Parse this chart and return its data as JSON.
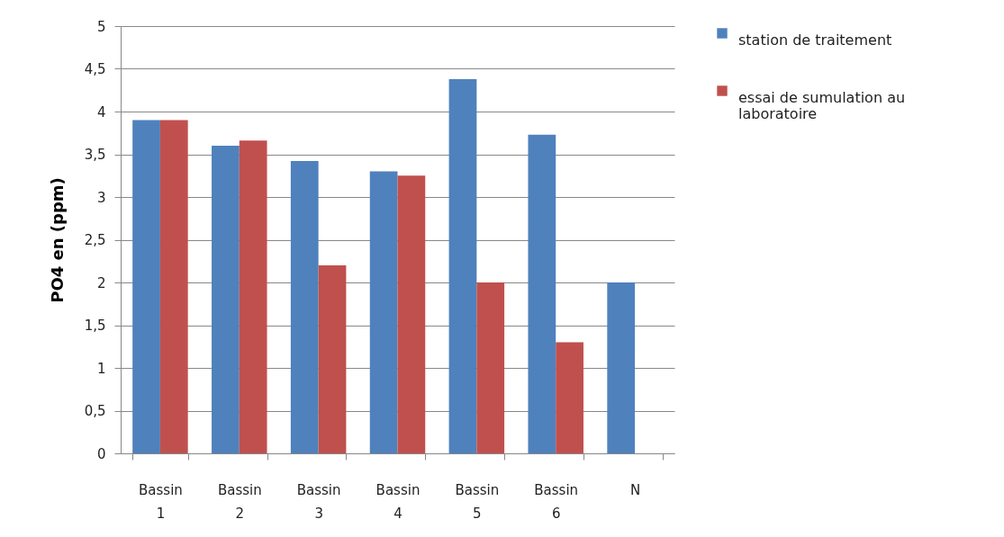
{
  "chart_data": {
    "type": "bar",
    "ylabel": "PO4 en (ppm)",
    "categories": [
      "Bassin 1",
      "Bassin 2",
      "Bassin 3",
      "Bassin 4",
      "Bassin 5",
      "Bassin 6",
      "N"
    ],
    "series": [
      {
        "name": "station de traitement",
        "color": "#4f81bd",
        "values": [
          3.9,
          3.6,
          3.42,
          3.3,
          4.38,
          3.73,
          2.0
        ]
      },
      {
        "name": "essai de sumulation au laboratoire",
        "color": "#c0504d",
        "values": [
          3.9,
          3.66,
          2.2,
          3.25,
          2.0,
          1.3,
          null
        ]
      }
    ],
    "ylim": [
      0,
      5
    ],
    "yticks": [
      0,
      {
        "value": 0.5,
        "label": "0,5"
      },
      1,
      {
        "value": 1.5,
        "label": "1,5"
      },
      2,
      {
        "value": 2.5,
        "label": "2,5"
      },
      3,
      {
        "value": 3.5,
        "label": "3,5"
      },
      4,
      {
        "value": 4.5,
        "label": "4,5"
      },
      5
    ],
    "grid": "y",
    "legend": "right"
  }
}
